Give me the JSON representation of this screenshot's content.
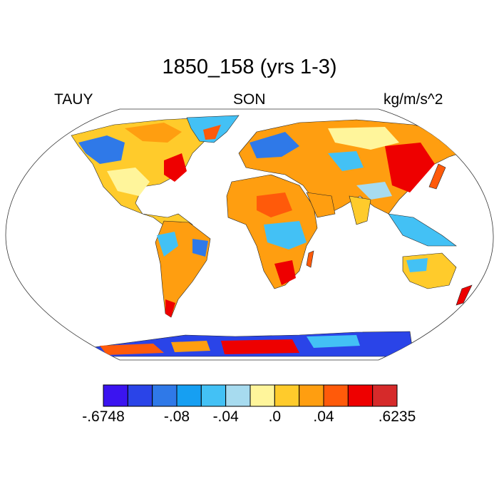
{
  "figure": {
    "title": "1850_158 (yrs 1-3)",
    "left_label": "TAUY",
    "center_label": "SON",
    "right_label": "kg/m/s^2"
  },
  "colorbar": {
    "colors": [
      "#3b14f0",
      "#2a44e8",
      "#2f79e8",
      "#169ff2",
      "#43c1f5",
      "#a7dbef",
      "#fff59b",
      "#ffcb2b",
      "#ff9e10",
      "#ff5a0a",
      "#ee0000",
      "#d62a2a"
    ],
    "labels": [
      {
        "text": "-.6748",
        "boundary": 0
      },
      {
        "text": "-.08",
        "boundary": 3
      },
      {
        "text": "-.04",
        "boundary": 5
      },
      {
        "text": ".0",
        "boundary": 7
      },
      {
        "text": ".04",
        "boundary": 9
      },
      {
        "text": ".6235",
        "boundary": 12
      }
    ]
  }
}
